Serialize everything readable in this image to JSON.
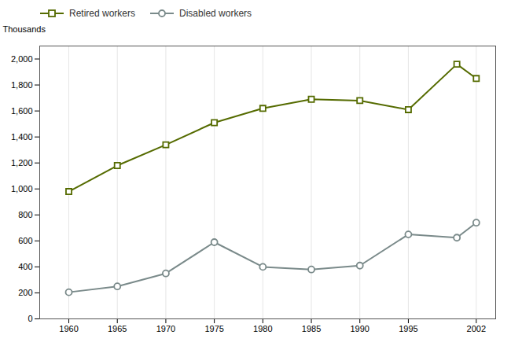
{
  "chart_data": {
    "type": "line",
    "x": [
      1960,
      1965,
      1970,
      1975,
      1980,
      1985,
      1990,
      1995,
      2000,
      2002
    ],
    "series": [
      {
        "name": "Retired workers",
        "color": "#556B00",
        "marker": "square",
        "values": [
          980,
          1180,
          1340,
          1510,
          1620,
          1690,
          1680,
          1610,
          1960,
          1850
        ]
      },
      {
        "name": "Disabled workers",
        "color": "#7A8A8A",
        "marker": "circle",
        "values": [
          205,
          250,
          350,
          590,
          400,
          380,
          410,
          650,
          625,
          740
        ]
      }
    ],
    "y_label": "Thousands",
    "xlim": [
      1957,
      2004
    ],
    "xticks": [
      1960,
      1965,
      1970,
      1975,
      1980,
      1985,
      1990,
      1995,
      2002
    ],
    "ylim": [
      0,
      2100
    ],
    "yticks": [
      0,
      200,
      400,
      600,
      800,
      {
        "value": 1000,
        "label": "1,000"
      },
      {
        "value": 1200,
        "label": "1,200"
      },
      {
        "value": 1400,
        "label": "1,400"
      },
      {
        "value": 1600,
        "label": "1,600"
      },
      {
        "value": 1800,
        "label": "1,800"
      },
      {
        "value": 2000,
        "label": "2,000"
      }
    ],
    "grid": "x",
    "legend": "top"
  }
}
